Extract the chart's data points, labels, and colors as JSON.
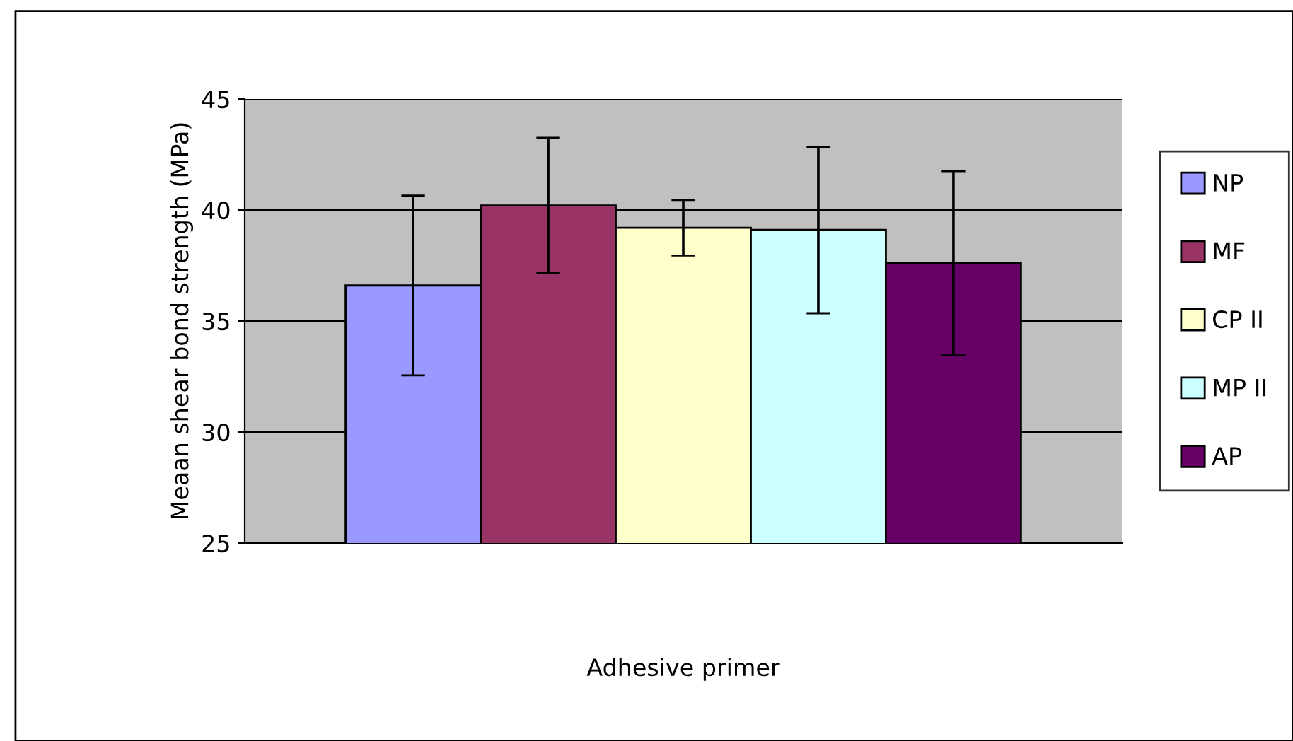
{
  "chart_data": {
    "type": "bar",
    "xlabel": "Adhesive primer",
    "ylabel": "Meaan shear bond strength (MPa)",
    "categories": [
      null
    ],
    "series": [
      {
        "name": "NP",
        "color": "#9999ff",
        "values": [
          36.6
        ],
        "errors": [
          4.05
        ]
      },
      {
        "name": "MF",
        "color": "#993366",
        "values": [
          40.2
        ],
        "errors": [
          3.05
        ]
      },
      {
        "name": "CP II",
        "color": "#ffffcc",
        "values": [
          39.2
        ],
        "errors": [
          1.25
        ]
      },
      {
        "name": "MP II",
        "color": "#ccffff",
        "values": [
          39.1
        ],
        "errors": [
          3.75
        ]
      },
      {
        "name": "AP",
        "color": "#660066",
        "values": [
          37.6
        ],
        "errors": [
          4.15
        ]
      }
    ],
    "ylim": [
      25,
      45
    ],
    "yticks": [
      25,
      30,
      35,
      40,
      45
    ],
    "grid": "y",
    "legend": "right"
  }
}
